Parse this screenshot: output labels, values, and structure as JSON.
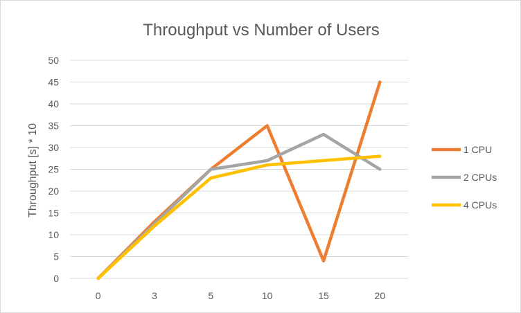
{
  "chart_data": {
    "type": "line",
    "title": "Throughput vs Number of Users",
    "xlabel": "",
    "ylabel": "Throughput [s] * 10",
    "categories": [
      "0",
      "3",
      "5",
      "10",
      "15",
      "20"
    ],
    "yticks": [
      "0",
      "5",
      "10",
      "15",
      "20",
      "25",
      "30",
      "35",
      "40",
      "45",
      "50"
    ],
    "ylim": [
      0,
      50
    ],
    "grid": true,
    "legend_position": "right",
    "series": [
      {
        "name": "1 CPU",
        "color": "#ED7D31",
        "values": [
          0,
          13,
          25,
          35,
          4,
          45
        ]
      },
      {
        "name": "2 CPUs",
        "color": "#A5A5A5",
        "values": [
          0,
          12.5,
          25,
          27,
          33,
          25
        ]
      },
      {
        "name": "4 CPUs",
        "color": "#FFC000",
        "values": [
          0,
          12,
          23,
          26,
          27,
          28
        ]
      }
    ]
  }
}
